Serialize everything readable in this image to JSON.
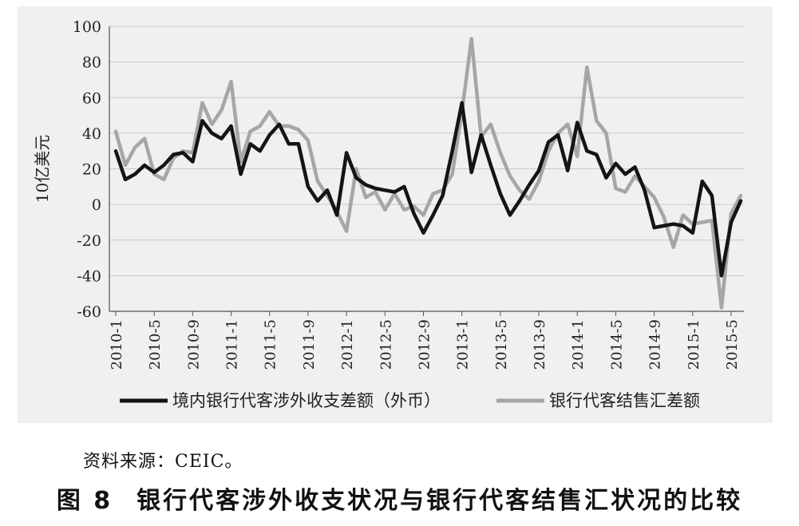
{
  "figure": {
    "number": "图 8",
    "title": "银行代客涉外收支状况与银行代客结售汇状况的比较"
  },
  "source_note": "资料来源：CEIC。",
  "chart_data": {
    "type": "line",
    "ylabel": "10亿美元",
    "ylim": [
      -60,
      100
    ],
    "yticks": [
      100,
      80,
      60,
      40,
      20,
      0,
      -20,
      -40,
      -60
    ],
    "xticks": [
      "2010-1",
      "2010-5",
      "2010-9",
      "2011-1",
      "2011-5",
      "2011-9",
      "2012-1",
      "2012-5",
      "2012-9",
      "2013-1",
      "2013-5",
      "2013-9",
      "2014-1",
      "2014-5",
      "2014-9",
      "2015-1",
      "2015-5"
    ],
    "x_start": "2010-1",
    "x_end": "2015-5",
    "legend_position": "bottom",
    "grid": "horizontal",
    "series": [
      {
        "name": "银行代客结售汇差额",
        "color": "#a6a6a6",
        "values": [
          41,
          22,
          32,
          37,
          17,
          14,
          26,
          30,
          29,
          57,
          45,
          53,
          69,
          24,
          41,
          44,
          52,
          44,
          44,
          42,
          36,
          13,
          5,
          -4,
          -15,
          20,
          4,
          7,
          -3,
          6,
          -3,
          -1,
          -6,
          6,
          8,
          17,
          52,
          93,
          38,
          45,
          29,
          16,
          8,
          3,
          13,
          30,
          40,
          45,
          27,
          77,
          47,
          40,
          9,
          7,
          16,
          10,
          4,
          -7,
          -24,
          -6,
          -11,
          -10,
          -9,
          -58,
          -5,
          5
        ]
      },
      {
        "name": "境内银行代客涉外收支差额（外币）",
        "color": "#141414",
        "values": [
          30,
          14,
          17,
          22,
          18,
          22,
          28,
          29,
          24,
          47,
          40,
          37,
          44,
          17,
          34,
          30,
          39,
          45,
          34,
          34,
          10,
          2,
          8,
          -6,
          29,
          15,
          11,
          9,
          8,
          7,
          10,
          -5,
          -16,
          -6,
          5,
          30,
          57,
          18,
          39,
          22,
          6,
          -6,
          2,
          11,
          19,
          35,
          39,
          19,
          46,
          30,
          28,
          15,
          23,
          17,
          21,
          8,
          -13,
          -12,
          -11,
          -12,
          -16,
          13,
          5,
          -40,
          -10,
          2
        ]
      }
    ]
  }
}
